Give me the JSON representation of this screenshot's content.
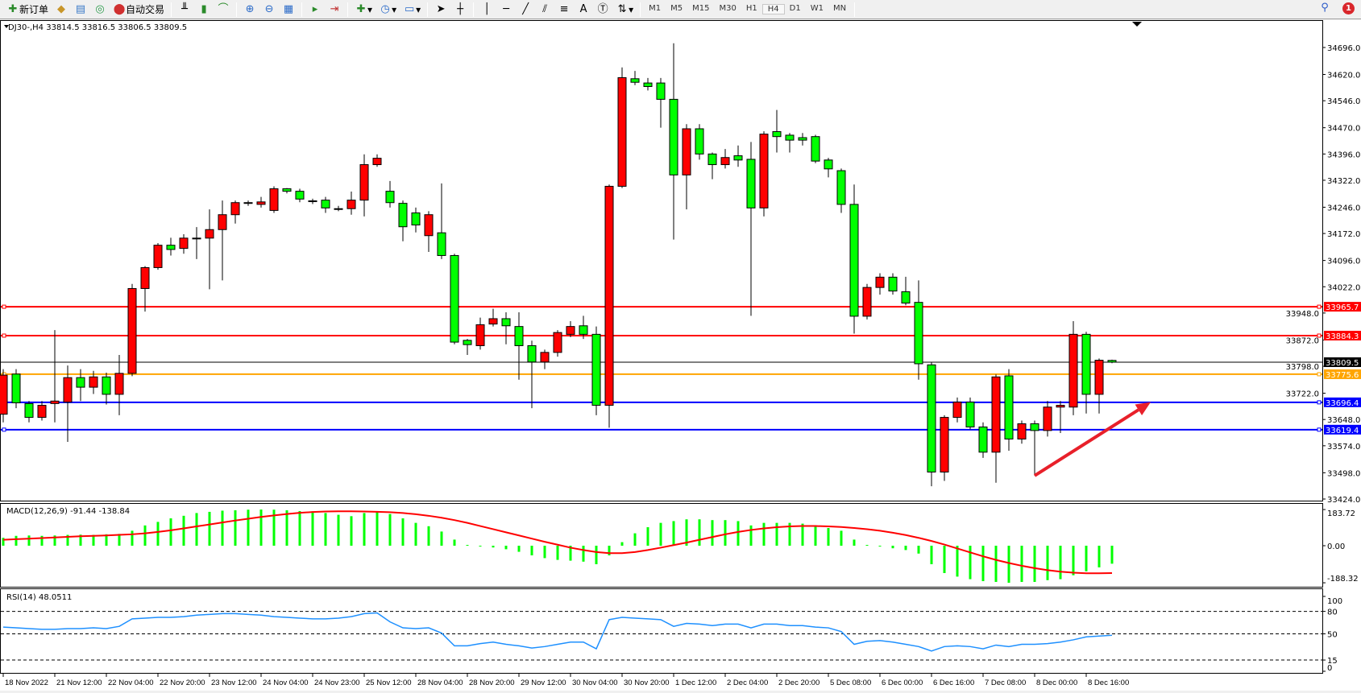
{
  "toolbar": {
    "new_order": "新订单",
    "auto_trading": "自动交易",
    "timeframes": [
      "M1",
      "M5",
      "M15",
      "M30",
      "H1",
      "H4",
      "D1",
      "W1",
      "MN"
    ],
    "active_timeframe": "H4",
    "notification_count": "1",
    "icons": [
      "new-order-icon",
      "market-watch-icon",
      "data-window-icon",
      "navigator-icon",
      "auto-trading-icon",
      "bar-chart-icon",
      "candlestick-icon",
      "line-chart-icon",
      "zoom-in-icon",
      "zoom-out-icon",
      "tile-windows-icon",
      "auto-scroll-icon",
      "chart-shift-icon",
      "indicators-icon",
      "periods-icon",
      "templates-icon",
      "cursor-icon",
      "crosshair-icon",
      "vertical-line-icon",
      "horizontal-line-icon",
      "trendline-icon",
      "equidistant-channel-icon",
      "fibonacci-icon",
      "text-icon",
      "text-label-icon",
      "arrows-icon",
      "search-icon",
      "notifications-icon"
    ]
  },
  "chart": {
    "header": "DJ30-,H4  33814.5 33816.5 33806.5 33809.5",
    "colors": {
      "bull": "#ff0000",
      "bear": "#00ff00",
      "macd_hist": "#00ff00",
      "signal": "#ff0000",
      "rsi": "#1e90ff",
      "arrow": "#e8202a"
    },
    "price_ticks": [
      "34696.0",
      "34620.0",
      "34546.0",
      "34470.0",
      "34396.0",
      "34322.0",
      "34246.0",
      "34172.0",
      "34096.0",
      "34022.0",
      "33948.0",
      "33872.0",
      "33798.0",
      "33722.0",
      "33648.0",
      "33574.0",
      "33498.0",
      "33424.0"
    ],
    "price_range": [
      33424,
      34696
    ],
    "time_labels": [
      "18 Nov 2022",
      "21 Nov 12:00",
      "22 Nov 04:00",
      "22 Nov 20:00",
      "23 Nov 12:00",
      "24 Nov 04:00",
      "24 Nov 23:00",
      "25 Nov 12:00",
      "28 Nov 04:00",
      "28 Nov 20:00",
      "29 Nov 12:00",
      "30 Nov 04:00",
      "30 Nov 20:00",
      "1 Dec 12:00",
      "2 Dec 04:00",
      "2 Dec 20:00",
      "5 Dec 08:00",
      "6 Dec 00:00",
      "6 Dec 16:00",
      "7 Dec 08:00",
      "8 Dec 00:00",
      "8 Dec 16:00"
    ],
    "levels": [
      {
        "price": 33965.7,
        "label": "33965.7",
        "color": "#ff0000"
      },
      {
        "price": 33884.3,
        "label": "33884.3",
        "color": "#ff0000"
      },
      {
        "price": 33809.5,
        "label": "33809.5",
        "color": "#000000"
      },
      {
        "price": 33775.6,
        "label": "33775.6",
        "color": "#ffa500"
      },
      {
        "price": 33696.4,
        "label": "33696.4",
        "color": "#0000ff"
      },
      {
        "price": 33619.4,
        "label": "33619.4",
        "color": "#0000ff"
      }
    ],
    "arrow": {
      "from": {
        "time": "8 Dec 00:00",
        "price": 33490
      },
      "to": {
        "time": "9 Dec 12:00",
        "price": 33697
      }
    },
    "candles_ohlc": [
      [
        33663,
        33790,
        33640,
        33773
      ],
      [
        33776,
        33790,
        33680,
        33695
      ],
      [
        33693,
        33700,
        33640,
        33654
      ],
      [
        33654,
        33700,
        33645,
        33688
      ],
      [
        33693,
        33900,
        33640,
        33700
      ],
      [
        33697,
        33800,
        33585,
        33766
      ],
      [
        33766,
        33790,
        33700,
        33739
      ],
      [
        33739,
        33785,
        33720,
        33768
      ],
      [
        33768,
        33780,
        33690,
        33719
      ],
      [
        33719,
        33830,
        33660,
        33778
      ],
      [
        33778,
        34030,
        33770,
        34017
      ],
      [
        34017,
        34080,
        33952,
        34076
      ],
      [
        34076,
        34145,
        34070,
        34139
      ],
      [
        34139,
        34160,
        34110,
        34127
      ],
      [
        34130,
        34170,
        34115,
        34159
      ],
      [
        34159,
        34190,
        34100,
        34157
      ],
      [
        34159,
        34240,
        34015,
        34183
      ],
      [
        34183,
        34265,
        34040,
        34225
      ],
      [
        34225,
        34265,
        34200,
        34259
      ],
      [
        34259,
        34265,
        34250,
        34257
      ],
      [
        34254,
        34275,
        34245,
        34261
      ],
      [
        34237,
        34305,
        34230,
        34298
      ],
      [
        34298,
        34300,
        34285,
        34291
      ],
      [
        34291,
        34298,
        34260,
        34269
      ],
      [
        34264,
        34270,
        34255,
        34262
      ],
      [
        34266,
        34275,
        34230,
        34244
      ],
      [
        34242,
        34250,
        34235,
        34242
      ],
      [
        34242,
        34290,
        34225,
        34266
      ],
      [
        34266,
        34395,
        34220,
        34366
      ],
      [
        34366,
        34395,
        34360,
        34384
      ],
      [
        34291,
        34320,
        34245,
        34259
      ],
      [
        34257,
        34265,
        34150,
        34191
      ],
      [
        34230,
        34245,
        34175,
        34196
      ],
      [
        34166,
        34235,
        34120,
        34225
      ],
      [
        34174,
        34313,
        34100,
        34110
      ],
      [
        34110,
        34115,
        33860,
        33866
      ],
      [
        33871,
        33875,
        33830,
        33859
      ],
      [
        33856,
        33935,
        33845,
        33915
      ],
      [
        33917,
        33960,
        33910,
        33932
      ],
      [
        33932,
        33950,
        33860,
        33912
      ],
      [
        33910,
        33950,
        33760,
        33856
      ],
      [
        33856,
        33870,
        33680,
        33810
      ],
      [
        33810,
        33845,
        33790,
        33837
      ],
      [
        33837,
        33900,
        33825,
        33893
      ],
      [
        33888,
        33925,
        33880,
        33910
      ],
      [
        33912,
        33940,
        33875,
        33888
      ],
      [
        33888,
        33910,
        33660,
        33688
      ],
      [
        33688,
        34310,
        33625,
        34305
      ],
      [
        34305,
        34640,
        34300,
        34611
      ],
      [
        34608,
        34630,
        34590,
        34598
      ],
      [
        34596,
        34610,
        34575,
        34586
      ],
      [
        34596,
        34610,
        34470,
        34550
      ],
      [
        34550,
        34708,
        34155,
        34337
      ],
      [
        34337,
        34480,
        34240,
        34467
      ],
      [
        34467,
        34480,
        34380,
        34396
      ],
      [
        34396,
        34400,
        34325,
        34366
      ],
      [
        34366,
        34410,
        34355,
        34386
      ],
      [
        34391,
        34420,
        34360,
        34379
      ],
      [
        34381,
        34430,
        33940,
        34244
      ],
      [
        34244,
        34460,
        34220,
        34452
      ],
      [
        34459,
        34520,
        34400,
        34445
      ],
      [
        34449,
        34455,
        34400,
        34435
      ],
      [
        34442,
        34455,
        34420,
        34435
      ],
      [
        34445,
        34450,
        34370,
        34376
      ],
      [
        34379,
        34385,
        34330,
        34354
      ],
      [
        34349,
        34355,
        34230,
        34254
      ],
      [
        34254,
        34310,
        33890,
        33939
      ],
      [
        33939,
        34030,
        33930,
        34020
      ],
      [
        34020,
        34060,
        34000,
        34049
      ],
      [
        34049,
        34060,
        34000,
        34010
      ],
      [
        34008,
        34050,
        33970,
        33976
      ],
      [
        33978,
        34040,
        33760,
        33805
      ],
      [
        33802,
        33810,
        33460,
        33500
      ],
      [
        33500,
        33660,
        33475,
        33654
      ],
      [
        33654,
        33710,
        33640,
        33697
      ],
      [
        33697,
        33710,
        33620,
        33627
      ],
      [
        33627,
        33640,
        33540,
        33556
      ],
      [
        33556,
        33775,
        33470,
        33768
      ],
      [
        33771,
        33790,
        33560,
        33593
      ],
      [
        33593,
        33645,
        33580,
        33636
      ],
      [
        33636,
        33645,
        33490,
        33617
      ],
      [
        33617,
        33700,
        33600,
        33683
      ],
      [
        33683,
        33700,
        33610,
        33688
      ],
      [
        33683,
        33925,
        33660,
        33888
      ],
      [
        33888,
        33895,
        33665,
        33719
      ],
      [
        33719,
        33820,
        33665,
        33815
      ],
      [
        33814.5,
        33816.5,
        33806.5,
        33809.5
      ]
    ]
  },
  "macd": {
    "label": "MACD(12,26,9) -91.44 -138.84",
    "ticks": [
      "183.72",
      "0.00",
      "-188.32"
    ],
    "range": [
      -188.32,
      183.72
    ],
    "histogram": [
      40,
      50,
      52,
      50,
      52,
      55,
      56,
      55,
      58,
      60,
      76,
      103,
      121,
      139,
      152,
      166,
      172,
      178,
      180,
      183,
      183.72,
      183,
      180,
      176,
      175,
      166,
      157,
      150,
      166,
      175,
      161,
      139,
      116,
      99,
      72,
      31,
      4,
      -4,
      -9,
      -18,
      -31,
      -49,
      -63,
      -72,
      -76,
      -81,
      -94,
      -49,
      18,
      63,
      94,
      116,
      125,
      134,
      134,
      130,
      130,
      125,
      103,
      116,
      116,
      116,
      112,
      103,
      90,
      76,
      31,
      4,
      -4,
      -13,
      -22,
      -40,
      -94,
      -139,
      -157,
      -170,
      -180,
      -184,
      -188.32,
      -184,
      -184,
      -175,
      -170,
      -150,
      -130,
      -110,
      -91.44
    ],
    "signal": [
      30,
      33,
      36,
      39,
      42,
      45,
      48,
      50,
      52,
      55,
      58,
      63,
      70,
      78,
      88,
      98,
      108,
      118,
      128,
      137,
      146,
      154,
      161,
      167,
      171,
      174,
      175,
      175,
      174,
      172,
      170,
      166,
      160,
      152,
      142,
      130,
      116,
      100,
      84,
      68,
      52,
      36,
      20,
      5,
      -10,
      -22,
      -32,
      -38,
      -38,
      -32,
      -22,
      -10,
      3,
      16,
      30,
      44,
      58,
      70,
      80,
      88,
      94,
      98,
      100,
      100,
      98,
      95,
      90,
      84,
      76,
      66,
      54,
      40,
      24,
      6,
      -14,
      -34,
      -54,
      -72,
      -88,
      -102,
      -114,
      -124,
      -132,
      -137,
      -140,
      -140,
      -138.84
    ]
  },
  "rsi": {
    "label": "RSI(14) 48.0511",
    "ticks": [
      "100",
      "80",
      "50",
      "15",
      "0"
    ],
    "levels": [
      80,
      50,
      15
    ],
    "values": [
      59,
      58,
      57,
      56,
      56,
      57,
      57,
      58,
      57,
      60,
      70,
      71,
      72,
      72,
      73,
      75,
      76,
      77,
      77,
      76,
      75,
      73,
      72,
      71,
      70,
      70,
      71,
      73,
      77,
      78,
      66,
      58,
      57,
      58,
      51,
      34,
      34,
      37,
      39,
      36,
      34,
      31,
      33,
      36,
      39,
      39,
      30,
      69,
      72,
      71,
      70,
      69,
      60,
      64,
      63,
      61,
      63,
      63,
      58,
      63,
      63,
      61,
      61,
      59,
      58,
      53,
      36,
      40,
      41,
      39,
      36,
      33,
      27,
      33,
      34,
      33,
      30,
      35,
      33,
      36,
      36,
      37,
      39,
      42,
      46,
      47,
      48.0511
    ]
  }
}
